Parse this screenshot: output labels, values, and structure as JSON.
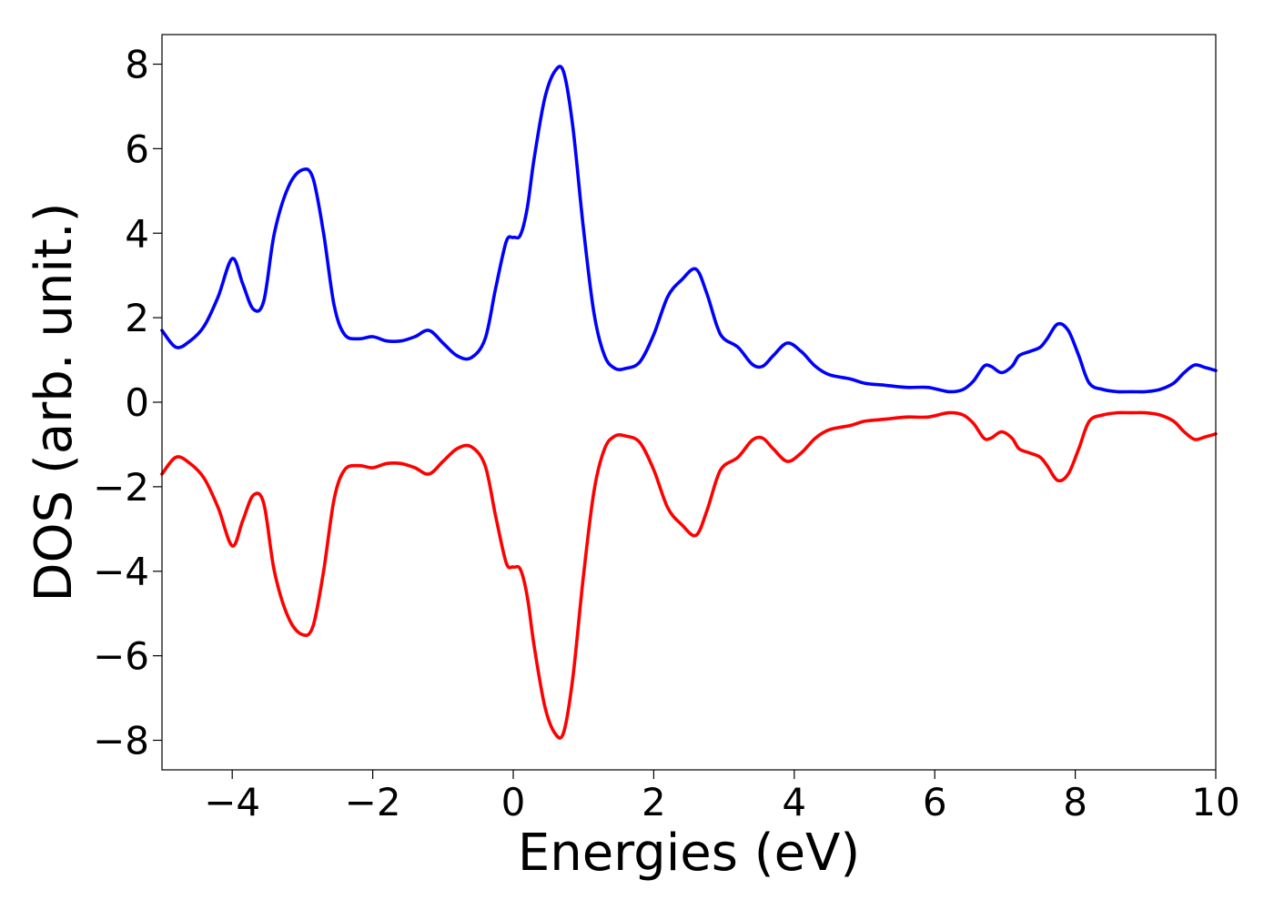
{
  "chart_data": {
    "type": "line",
    "title": "",
    "xlabel": "Energies (eV)",
    "ylabel": "DOS (arb. unit.)",
    "xlim": [
      -5,
      10
    ],
    "ylim": [
      -8.7,
      8.7
    ],
    "grid": false,
    "legend": "none",
    "xticks": [
      -4,
      -2,
      0,
      2,
      4,
      6,
      8,
      10
    ],
    "xtick_labels": [
      "−4",
      "−2",
      "0",
      "2",
      "4",
      "6",
      "8",
      "10"
    ],
    "yticks": [
      8,
      6,
      4,
      2,
      0,
      -2,
      -4,
      -6,
      -8
    ],
    "ytick_labels": [
      "8",
      "6",
      "4",
      "2",
      "0",
      "−2",
      "−4",
      "−6",
      "−8"
    ],
    "series": [
      {
        "color": "#0000ff",
        "x": [
          -5.0,
          -4.8,
          -4.6,
          -4.4,
          -4.2,
          -4.0,
          -3.85,
          -3.7,
          -3.55,
          -3.4,
          -3.2,
          -3.0,
          -2.85,
          -2.7,
          -2.55,
          -2.4,
          -2.2,
          -2.0,
          -1.8,
          -1.6,
          -1.4,
          -1.2,
          -1.0,
          -0.8,
          -0.6,
          -0.4,
          -0.25,
          -0.1,
          0.0,
          0.1,
          0.2,
          0.3,
          0.45,
          0.6,
          0.72,
          0.85,
          1.0,
          1.15,
          1.3,
          1.45,
          1.6,
          1.8,
          2.0,
          2.2,
          2.4,
          2.6,
          2.75,
          2.9,
          3.0,
          3.2,
          3.4,
          3.55,
          3.7,
          3.9,
          4.1,
          4.3,
          4.5,
          4.8,
          5.0,
          5.3,
          5.6,
          5.9,
          6.2,
          6.4,
          6.55,
          6.7,
          6.8,
          6.95,
          7.1,
          7.2,
          7.35,
          7.5,
          7.6,
          7.75,
          7.9,
          8.05,
          8.2,
          8.4,
          8.6,
          8.8,
          9.0,
          9.2,
          9.4,
          9.55,
          9.7,
          9.85,
          10.0
        ],
        "values": [
          1.7,
          1.3,
          1.45,
          1.8,
          2.5,
          3.4,
          2.8,
          2.2,
          2.4,
          4.0,
          5.1,
          5.5,
          5.3,
          4.0,
          2.3,
          1.6,
          1.5,
          1.55,
          1.45,
          1.45,
          1.55,
          1.7,
          1.4,
          1.1,
          1.05,
          1.5,
          2.7,
          3.8,
          3.9,
          3.95,
          4.6,
          5.8,
          7.2,
          7.85,
          7.8,
          6.5,
          4.1,
          2.1,
          1.1,
          0.8,
          0.8,
          0.95,
          1.6,
          2.5,
          2.9,
          3.15,
          2.6,
          1.8,
          1.5,
          1.3,
          0.9,
          0.85,
          1.1,
          1.4,
          1.2,
          0.85,
          0.65,
          0.55,
          0.45,
          0.4,
          0.35,
          0.35,
          0.25,
          0.3,
          0.5,
          0.85,
          0.85,
          0.7,
          0.85,
          1.1,
          1.2,
          1.3,
          1.5,
          1.85,
          1.7,
          1.1,
          0.45,
          0.3,
          0.25,
          0.25,
          0.25,
          0.3,
          0.45,
          0.7,
          0.88,
          0.82,
          0.75
        ]
      },
      {
        "color": "#ff0000",
        "x": [
          -5.0,
          -4.8,
          -4.6,
          -4.4,
          -4.2,
          -4.0,
          -3.85,
          -3.7,
          -3.55,
          -3.4,
          -3.2,
          -3.0,
          -2.85,
          -2.7,
          -2.55,
          -2.4,
          -2.2,
          -2.0,
          -1.8,
          -1.6,
          -1.4,
          -1.2,
          -1.0,
          -0.8,
          -0.6,
          -0.4,
          -0.25,
          -0.1,
          0.0,
          0.1,
          0.2,
          0.3,
          0.45,
          0.6,
          0.72,
          0.85,
          1.0,
          1.15,
          1.3,
          1.45,
          1.6,
          1.8,
          2.0,
          2.2,
          2.4,
          2.6,
          2.75,
          2.9,
          3.0,
          3.2,
          3.4,
          3.55,
          3.7,
          3.9,
          4.1,
          4.3,
          4.5,
          4.8,
          5.0,
          5.3,
          5.6,
          5.9,
          6.2,
          6.4,
          6.55,
          6.7,
          6.8,
          6.95,
          7.1,
          7.2,
          7.35,
          7.5,
          7.6,
          7.75,
          7.9,
          8.05,
          8.2,
          8.4,
          8.6,
          8.8,
          9.0,
          9.2,
          9.4,
          9.55,
          9.7,
          9.85,
          10.0
        ],
        "values": [
          -1.7,
          -1.3,
          -1.45,
          -1.8,
          -2.5,
          -3.4,
          -2.8,
          -2.2,
          -2.4,
          -4.0,
          -5.1,
          -5.5,
          -5.3,
          -4.0,
          -2.3,
          -1.6,
          -1.5,
          -1.55,
          -1.45,
          -1.45,
          -1.55,
          -1.7,
          -1.4,
          -1.1,
          -1.05,
          -1.5,
          -2.7,
          -3.8,
          -3.9,
          -3.95,
          -4.6,
          -5.8,
          -7.2,
          -7.85,
          -7.8,
          -6.5,
          -4.1,
          -2.1,
          -1.1,
          -0.8,
          -0.8,
          -0.95,
          -1.6,
          -2.5,
          -2.9,
          -3.15,
          -2.6,
          -1.8,
          -1.5,
          -1.3,
          -0.9,
          -0.85,
          -1.1,
          -1.4,
          -1.2,
          -0.85,
          -0.65,
          -0.55,
          -0.45,
          -0.4,
          -0.35,
          -0.35,
          -0.25,
          -0.3,
          -0.5,
          -0.85,
          -0.85,
          -0.7,
          -0.85,
          -1.1,
          -1.2,
          -1.3,
          -1.5,
          -1.85,
          -1.7,
          -1.1,
          -0.45,
          -0.3,
          -0.25,
          -0.25,
          -0.25,
          -0.3,
          -0.45,
          -0.7,
          -0.88,
          -0.82,
          -0.75
        ]
      }
    ]
  }
}
